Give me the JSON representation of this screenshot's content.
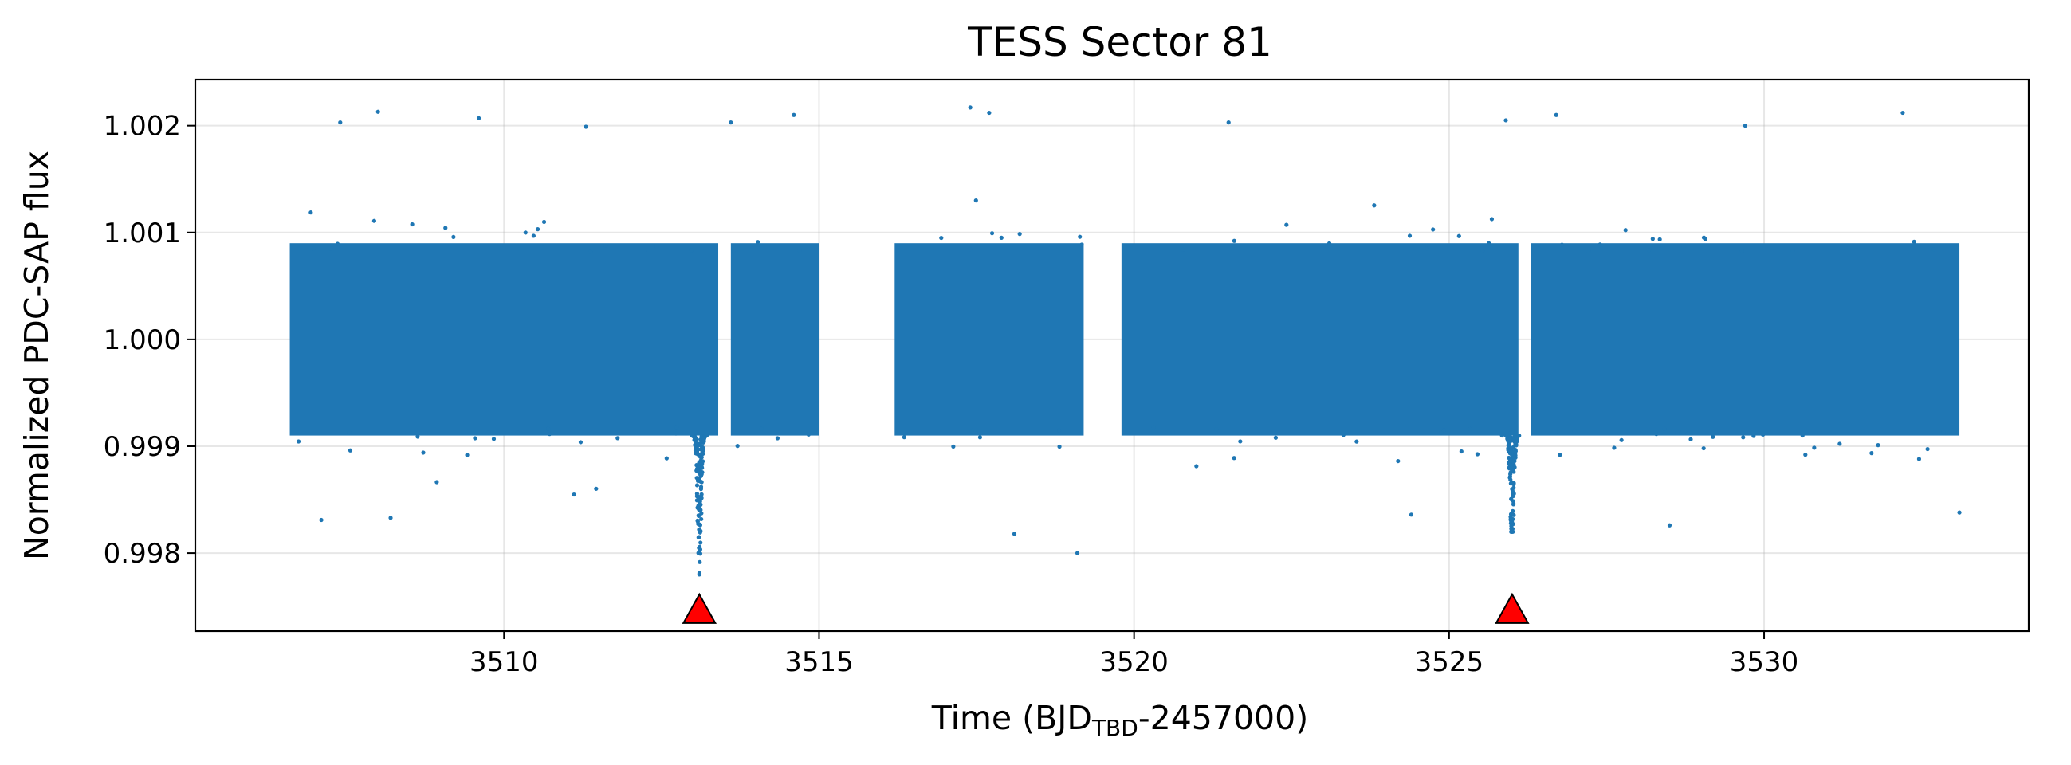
{
  "chart_data": {
    "type": "scatter",
    "title": "TESS Sector 81",
    "xlabel": {
      "prefix": "Time (BJD",
      "subscript": "TBD",
      "suffix": "-2457000)"
    },
    "ylabel": "Normalized PDC-SAP flux",
    "xlim": [
      3505.1,
      3534.2
    ],
    "ylim": [
      0.99727,
      1.00243
    ],
    "xticks": [
      {
        "value": 3510,
        "label": "3510"
      },
      {
        "value": 3515,
        "label": "3515"
      },
      {
        "value": 3520,
        "label": "3520"
      },
      {
        "value": 3525,
        "label": "3525"
      },
      {
        "value": 3530,
        "label": "3530"
      }
    ],
    "yticks": [
      {
        "value": 0.998,
        "label": "0.998"
      },
      {
        "value": 0.999,
        "label": "0.999"
      },
      {
        "value": 1.0,
        "label": "1.000"
      },
      {
        "value": 1.001,
        "label": "1.001"
      },
      {
        "value": 1.002,
        "label": "1.002"
      }
    ],
    "grid": true,
    "series": [
      {
        "marker": "point",
        "color": "#1f77b4",
        "baseline_flux": 1.0,
        "typical_scatter_range": [
          0.9991,
          1.0009
        ],
        "data_segments": [
          {
            "x_start": 3506.6,
            "x_end": 3513.4
          },
          {
            "x_start": 3513.6,
            "x_end": 3515.0
          },
          {
            "x_start": 3516.2,
            "x_end": 3519.2
          },
          {
            "x_start": 3519.8,
            "x_end": 3526.1
          },
          {
            "x_start": 3526.3,
            "x_end": 3533.1
          }
        ],
        "transit_dips": [
          {
            "x": 3513.1,
            "min_flux": 0.9978
          },
          {
            "x": 3526.0,
            "min_flux": 0.9982
          }
        ],
        "outlier_points": [
          [
            3508.0,
            1.00213
          ],
          [
            3507.4,
            1.00203
          ],
          [
            3509.6,
            1.00207
          ],
          [
            3511.3,
            1.00199
          ],
          [
            3513.6,
            1.00203
          ],
          [
            3514.6,
            1.0021
          ],
          [
            3517.4,
            1.00217
          ],
          [
            3517.7,
            1.00212
          ],
          [
            3521.5,
            1.00203
          ],
          [
            3525.9,
            1.00205
          ],
          [
            3526.7,
            1.0021
          ],
          [
            3529.7,
            1.002
          ],
          [
            3532.2,
            1.00212
          ],
          [
            3507.1,
            0.99831
          ],
          [
            3508.2,
            0.99833
          ],
          [
            3518.1,
            0.99818
          ],
          [
            3519.1,
            0.998
          ],
          [
            3524.4,
            0.99836
          ],
          [
            3528.5,
            0.99826
          ],
          [
            3533.1,
            0.99838
          ]
        ]
      }
    ],
    "markers": [
      {
        "shape": "triangle-up",
        "x": 3513.1,
        "y": 0.99748,
        "face_color": "#ff0000",
        "edge_color": "#000000"
      },
      {
        "shape": "triangle-up",
        "x": 3526.0,
        "y": 0.99748,
        "face_color": "#ff0000",
        "edge_color": "#000000"
      }
    ]
  }
}
